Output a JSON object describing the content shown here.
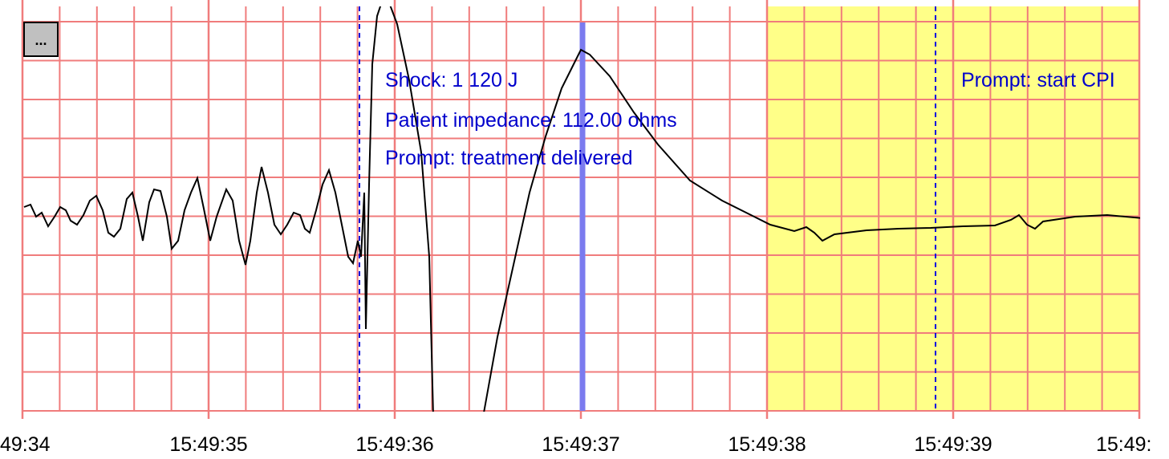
{
  "toolbar": {
    "button": "..."
  },
  "annotations": [
    "Shock: 1 120 J",
    "Patient impedance: 112.00 ohms",
    "Prompt: treatment delivered",
    "Prompt: start CPI"
  ],
  "time_labels": [
    "49:34",
    "15:49:35",
    "15:49:36",
    "15:49:37",
    "15:49:38",
    "15:49:39",
    "15:49:"
  ]
}
